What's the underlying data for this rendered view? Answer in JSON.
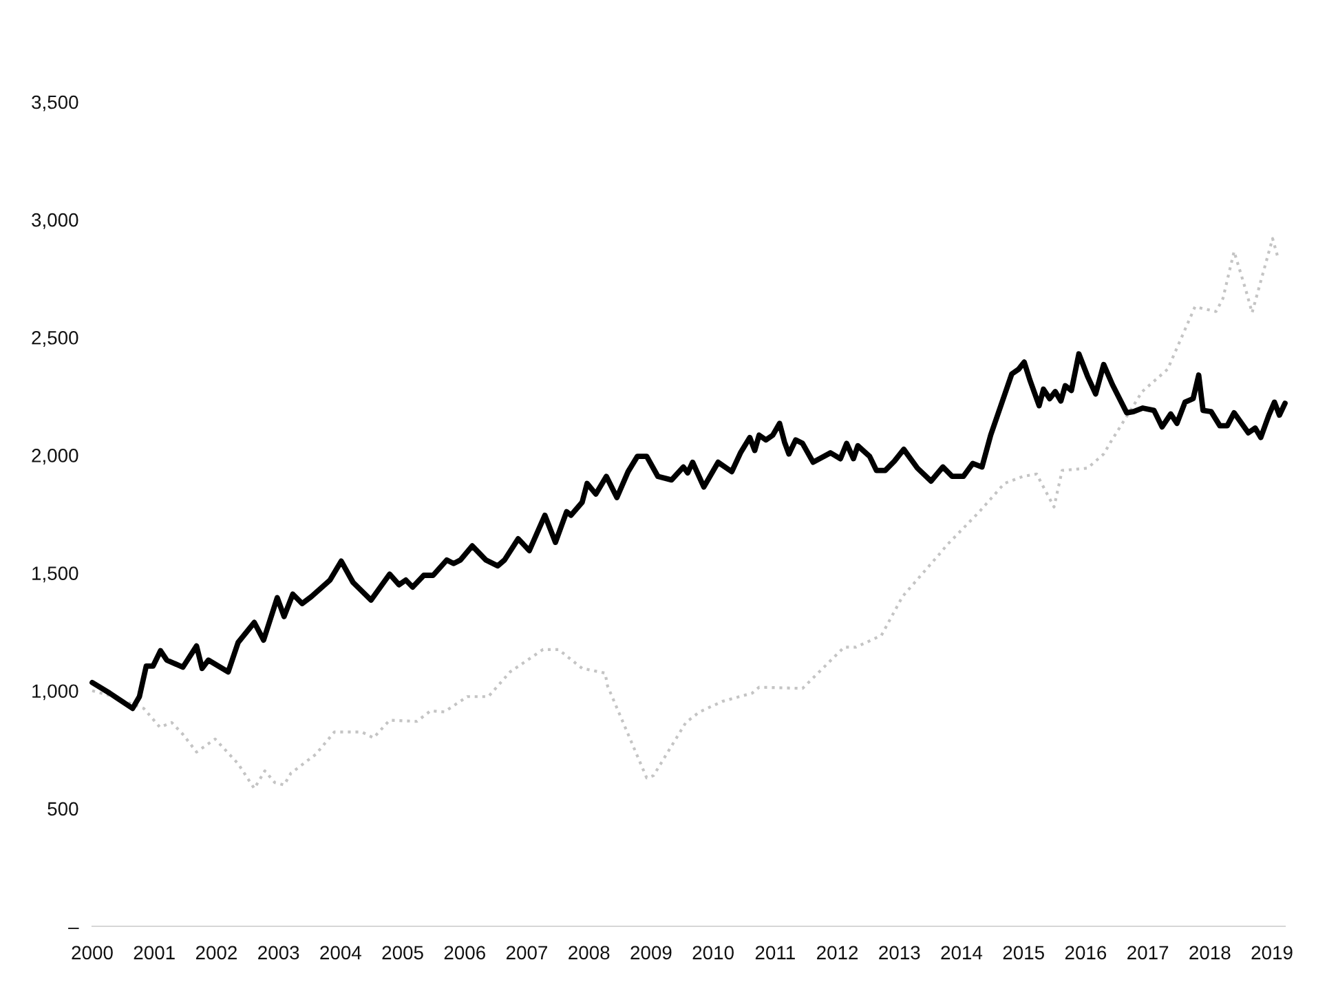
{
  "chart_data": {
    "type": "line",
    "xlim": [
      2000,
      2019.21
    ],
    "xticks": [
      2000,
      2001,
      2002,
      2003,
      2004,
      2005,
      2006,
      2007,
      2008,
      2009,
      2010,
      2011,
      2012,
      2013,
      2014,
      2015,
      2016,
      2017,
      2018,
      2019
    ],
    "ylim": [
      0,
      3500
    ],
    "yticks": [
      {
        "value": 0,
        "label": "–"
      },
      500,
      {
        "value": 1000,
        "label": "1,000"
      },
      {
        "value": 1500,
        "label": "1,500"
      },
      {
        "value": 2000,
        "label": "2,000"
      },
      {
        "value": 2500,
        "label": "2,500"
      },
      {
        "value": 3000,
        "label": "3,000"
      },
      {
        "value": 3500,
        "label": "3,500"
      }
    ],
    "grid": false,
    "series": [
      {
        "color": "#000000",
        "line_style": "solid",
        "x": [
          2000.0,
          2000.28,
          2000.65,
          2000.76,
          2000.87,
          2000.98,
          2001.1,
          2001.2,
          2001.46,
          2001.68,
          2001.77,
          2001.87,
          2002.19,
          2002.35,
          2002.61,
          2002.76,
          2002.98,
          2003.09,
          2003.23,
          2003.38,
          2003.53,
          2003.83,
          2004.01,
          2004.2,
          2004.49,
          2004.79,
          2004.94,
          2005.05,
          2005.16,
          2005.34,
          2005.49,
          2005.71,
          2005.82,
          2005.93,
          2006.12,
          2006.34,
          2006.53,
          2006.64,
          2006.86,
          2007.04,
          2007.29,
          2007.46,
          2007.64,
          2007.71,
          2007.89,
          2007.97,
          2008.11,
          2008.28,
          2008.45,
          2008.63,
          2008.78,
          2008.93,
          2009.11,
          2009.33,
          2009.52,
          2009.59,
          2009.67,
          2009.85,
          2010.08,
          2010.3,
          2010.44,
          2010.59,
          2010.67,
          2010.74,
          2010.85,
          2010.96,
          2011.07,
          2011.15,
          2011.22,
          2011.33,
          2011.44,
          2011.61,
          2011.89,
          2012.05,
          2012.15,
          2012.26,
          2012.33,
          2012.52,
          2012.63,
          2012.77,
          2012.92,
          2013.07,
          2013.29,
          2013.51,
          2013.7,
          2013.85,
          2014.03,
          2014.18,
          2014.33,
          2014.47,
          2014.62,
          2014.81,
          2014.92,
          2015.01,
          2015.1,
          2015.25,
          2015.32,
          2015.42,
          2015.51,
          2015.6,
          2015.67,
          2015.77,
          2015.89,
          2016.03,
          2016.16,
          2016.29,
          2016.43,
          2016.66,
          2016.77,
          2016.92,
          2017.1,
          2017.23,
          2017.37,
          2017.47,
          2017.6,
          2017.73,
          2017.82,
          2017.89,
          2018.02,
          2018.16,
          2018.28,
          2018.39,
          2018.62,
          2018.73,
          2018.82,
          2018.95,
          2019.04,
          2019.12,
          2019.21
        ],
        "values": [
          1035,
          990,
          925,
          975,
          1105,
          1105,
          1170,
          1130,
          1100,
          1190,
          1095,
          1130,
          1080,
          1205,
          1290,
          1215,
          1395,
          1315,
          1410,
          1370,
          1400,
          1470,
          1550,
          1460,
          1385,
          1495,
          1450,
          1470,
          1440,
          1490,
          1490,
          1555,
          1540,
          1555,
          1615,
          1555,
          1530,
          1555,
          1645,
          1595,
          1745,
          1630,
          1760,
          1745,
          1800,
          1880,
          1835,
          1910,
          1820,
          1930,
          1995,
          1995,
          1910,
          1895,
          1950,
          1925,
          1970,
          1865,
          1970,
          1930,
          2010,
          2075,
          2020,
          2085,
          2065,
          2085,
          2135,
          2055,
          2005,
          2065,
          2050,
          1970,
          2010,
          1985,
          2050,
          1985,
          2040,
          1995,
          1935,
          1935,
          1975,
          2025,
          1945,
          1890,
          1950,
          1910,
          1910,
          1965,
          1950,
          2085,
          2200,
          2345,
          2365,
          2395,
          2320,
          2210,
          2280,
          2240,
          2270,
          2230,
          2295,
          2275,
          2430,
          2335,
          2260,
          2385,
          2300,
          2180,
          2185,
          2200,
          2190,
          2120,
          2175,
          2135,
          2225,
          2240,
          2340,
          2190,
          2185,
          2125,
          2125,
          2180,
          2095,
          2115,
          2075,
          2170,
          2225,
          2170,
          2220
        ]
      },
      {
        "color": "#c4c4c4",
        "line_style": "dotted",
        "x": [
          2000.0,
          2000.28,
          2000.83,
          2001.09,
          2001.28,
          2001.46,
          2001.68,
          2001.98,
          2002.35,
          2002.61,
          2002.78,
          2002.94,
          2003.09,
          2003.2,
          2003.6,
          2003.9,
          2004.34,
          2004.53,
          2004.79,
          2005.23,
          2005.45,
          2005.67,
          2006.04,
          2006.38,
          2006.73,
          2007.26,
          2007.51,
          2007.89,
          2008.26,
          2008.3,
          2008.93,
          2009.04,
          2009.56,
          2009.78,
          2010.15,
          2010.63,
          2010.74,
          2011.44,
          2012.11,
          2012.3,
          2012.71,
          2013.05,
          2013.66,
          2013.77,
          2014.27,
          2014.69,
          2014.99,
          2015.21,
          2015.49,
          2015.62,
          2016.03,
          2016.29,
          2016.4,
          2016.91,
          2017.32,
          2017.76,
          2018.1,
          2018.21,
          2018.39,
          2018.58,
          2018.68,
          2019.01,
          2019.1
        ],
        "values": [
          1000,
          980,
          925,
          845,
          865,
          815,
          740,
          795,
          690,
          585,
          660,
          610,
          600,
          650,
          730,
          825,
          825,
          800,
          875,
          870,
          915,
          910,
          975,
          975,
          1080,
          1175,
          1175,
          1095,
          1075,
          1020,
          630,
          640,
          865,
          910,
          955,
          990,
          1015,
          1010,
          1185,
          1185,
          1235,
          1400,
          1585,
          1620,
          1755,
          1880,
          1910,
          1920,
          1780,
          1935,
          1945,
          2005,
          2055,
          2270,
          2365,
          2630,
          2610,
          2665,
          2865,
          2700,
          2605,
          2920,
          2835
        ]
      }
    ]
  }
}
